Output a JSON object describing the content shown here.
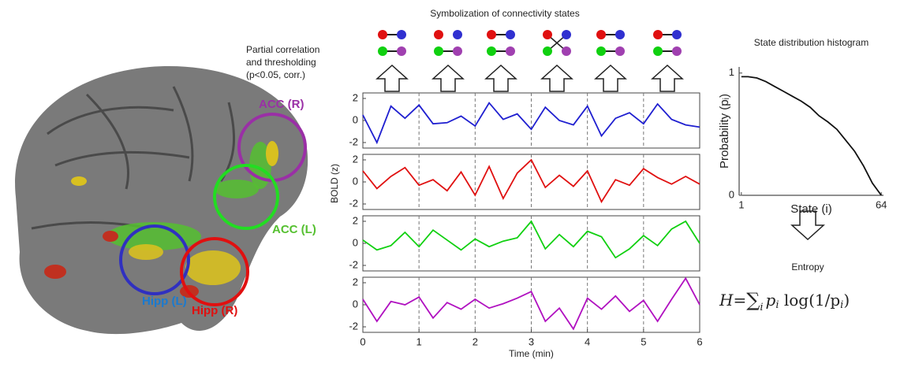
{
  "brain_labels": {
    "acc_r": "ACC (R)",
    "acc_l": "ACC (L)",
    "hipp_l": "Hipp (L)",
    "hipp_r": "Hipp (R)"
  },
  "symbolization_title": "Symbolization of connectivity states",
  "threshold_note": [
    "Partial correlation",
    "and thresholding",
    "(p<0.05, corr.)"
  ],
  "bold_ylabel": "BOLD (z)",
  "entropy_label": "Entropy",
  "formula": {
    "lhs": "H=",
    "sum": "∑",
    "sum_index": "i",
    "term": "p",
    "term_index": "i",
    "log": " log(1/p",
    "log_index": "i",
    "close": ")"
  },
  "chart_data": [
    {
      "type": "line",
      "color": "#1f1fd0",
      "xlim": [
        0,
        6
      ],
      "ylim": [
        -2.5,
        2.5
      ],
      "yticks": [
        -2,
        0,
        2
      ],
      "dividers": [
        1,
        2,
        3,
        4,
        5
      ],
      "x": [
        0,
        0.25,
        0.5,
        0.75,
        1,
        1.25,
        1.5,
        1.75,
        2,
        2.25,
        2.5,
        2.75,
        3,
        3.25,
        3.5,
        3.75,
        4,
        4.25,
        4.5,
        4.75,
        5,
        5.25,
        5.5,
        5.75,
        6
      ],
      "values": [
        0.5,
        -2.0,
        1.3,
        0.2,
        1.4,
        -0.3,
        -0.2,
        0.4,
        -0.5,
        1.6,
        0.1,
        0.6,
        -0.8,
        1.2,
        0.0,
        -0.4,
        1.3,
        -1.4,
        0.2,
        0.7,
        -0.3,
        1.5,
        0.1,
        -0.4,
        -0.6
      ]
    },
    {
      "type": "line",
      "color": "#e01010",
      "xlim": [
        0,
        6
      ],
      "ylim": [
        -2.5,
        2.5
      ],
      "yticks": [
        -2,
        0,
        2
      ],
      "dividers": [
        1,
        2,
        3,
        4,
        5
      ],
      "x": [
        0,
        0.25,
        0.5,
        0.75,
        1,
        1.25,
        1.5,
        1.75,
        2,
        2.25,
        2.5,
        2.75,
        3,
        3.25,
        3.5,
        3.75,
        4,
        4.25,
        4.5,
        4.75,
        5,
        5.25,
        5.5,
        5.75,
        6
      ],
      "values": [
        1.0,
        -0.6,
        0.5,
        1.3,
        -0.3,
        0.2,
        -0.8,
        0.9,
        -1.2,
        1.4,
        -1.5,
        0.8,
        2.0,
        -0.5,
        0.6,
        -0.4,
        1.0,
        -1.8,
        0.2,
        -0.3,
        1.2,
        0.4,
        -0.2,
        0.5,
        -0.2
      ]
    },
    {
      "type": "line",
      "color": "#10d010",
      "xlim": [
        0,
        6
      ],
      "ylim": [
        -2.5,
        2.5
      ],
      "yticks": [
        -2,
        0,
        2
      ],
      "dividers": [
        1,
        2,
        3,
        4,
        5
      ],
      "x": [
        0,
        0.25,
        0.5,
        0.75,
        1,
        1.25,
        1.5,
        1.75,
        2,
        2.25,
        2.5,
        2.75,
        3,
        3.25,
        3.5,
        3.75,
        4,
        4.25,
        4.5,
        4.75,
        5,
        5.25,
        5.5,
        5.75,
        6
      ],
      "values": [
        0.3,
        -0.6,
        -0.2,
        1.0,
        -0.3,
        1.2,
        0.3,
        -0.6,
        0.4,
        -0.3,
        0.2,
        0.5,
        2.0,
        -0.5,
        0.8,
        -0.3,
        1.1,
        0.6,
        -1.3,
        -0.5,
        0.7,
        -0.2,
        1.3,
        2.0,
        0.0
      ]
    },
    {
      "type": "line",
      "color": "#b010c0",
      "xlim": [
        0,
        6
      ],
      "ylim": [
        -2.5,
        2.5
      ],
      "yticks": [
        -2,
        0,
        2
      ],
      "dividers": [
        1,
        2,
        3,
        4,
        5
      ],
      "xticks": [
        0,
        1,
        2,
        3,
        4,
        5,
        6
      ],
      "xlabel": "Time (min)",
      "x": [
        0,
        0.25,
        0.5,
        0.75,
        1,
        1.25,
        1.5,
        1.75,
        2,
        2.25,
        2.5,
        2.75,
        3,
        3.25,
        3.5,
        3.75,
        4,
        4.25,
        4.5,
        4.75,
        5,
        5.25,
        5.5,
        5.75,
        6
      ],
      "values": [
        0.5,
        -1.5,
        0.3,
        0.0,
        0.7,
        -1.2,
        0.2,
        -0.4,
        0.5,
        -0.3,
        0.1,
        0.6,
        1.2,
        -1.5,
        -0.3,
        -2.2,
        0.6,
        -0.4,
        0.8,
        -0.6,
        0.4,
        -1.5,
        0.5,
        2.4,
        0.0
      ]
    },
    {
      "type": "line",
      "title": "State distribution histogram",
      "xlabel": "State (i)",
      "ylabel": "Probability (pᵢ)",
      "color": "#111111",
      "xlim": [
        0,
        65
      ],
      "ylim": [
        0,
        1.05
      ],
      "xticks": [
        1,
        64
      ],
      "yticks": [
        0,
        1
      ],
      "x": [
        1,
        4,
        8,
        12,
        16,
        20,
        24,
        28,
        32,
        36,
        40,
        44,
        48,
        52,
        56,
        60,
        64
      ],
      "values": [
        0.97,
        0.97,
        0.96,
        0.93,
        0.89,
        0.85,
        0.81,
        0.77,
        0.72,
        0.65,
        0.6,
        0.54,
        0.45,
        0.36,
        0.24,
        0.1,
        0.0
      ]
    }
  ]
}
